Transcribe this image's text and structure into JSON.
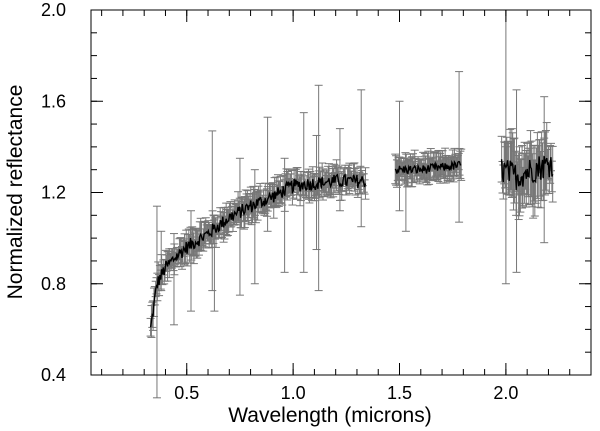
{
  "chart_data": {
    "type": "scatter",
    "title": "",
    "xlabel": "Wavelength (microns)",
    "ylabel": "Normalized reflectance",
    "xlim": [
      0.05,
      2.4
    ],
    "ylim": [
      0.4,
      2.0
    ],
    "x_ticks": [
      {
        "value": 0.5,
        "label": "0.5"
      },
      {
        "value": 1.0,
        "label": "1.0"
      },
      {
        "value": 1.5,
        "label": "1.5"
      },
      {
        "value": 2.0,
        "label": "2.0"
      }
    ],
    "y_ticks": [
      {
        "value": 0.4,
        "label": "0.4"
      },
      {
        "value": 0.8,
        "label": "0.8"
      },
      {
        "value": 1.2,
        "label": "1.2"
      },
      {
        "value": 1.6,
        "label": "1.6"
      },
      {
        "value": 2.0,
        "label": "2.0"
      }
    ],
    "x_minor_step": 0.1,
    "y_minor_step": 0.1,
    "grid": false,
    "colors": {
      "errorbar": "#777777",
      "data": "#000000",
      "axis": "#000000"
    },
    "segments": [
      {
        "name": "visible-1",
        "x_range": [
          0.33,
          1.34
        ],
        "anchors": [
          [
            0.33,
            0.6
          ],
          [
            0.36,
            0.8
          ],
          [
            0.4,
            0.87
          ],
          [
            0.45,
            0.92
          ],
          [
            0.5,
            0.96
          ],
          [
            0.6,
            1.02
          ],
          [
            0.7,
            1.09
          ],
          [
            0.8,
            1.14
          ],
          [
            0.9,
            1.18
          ],
          [
            1.0,
            1.23
          ],
          [
            1.1,
            1.24
          ],
          [
            1.2,
            1.25
          ],
          [
            1.34,
            1.25
          ]
        ],
        "noise": 0.03,
        "error": 0.05
      },
      {
        "name": "nir-h-band",
        "x_range": [
          1.48,
          1.79
        ],
        "anchors": [
          [
            1.48,
            1.3
          ],
          [
            1.6,
            1.3
          ],
          [
            1.7,
            1.31
          ],
          [
            1.79,
            1.32
          ]
        ],
        "noise": 0.02,
        "error": 0.05
      },
      {
        "name": "nir-k-band",
        "x_range": [
          1.98,
          2.22
        ],
        "anchors": [
          [
            1.98,
            1.3
          ],
          [
            2.05,
            1.27
          ],
          [
            2.12,
            1.3
          ],
          [
            2.22,
            1.33
          ]
        ],
        "noise": 0.06,
        "error": 0.12
      }
    ],
    "outlier_errorbars": [
      [
        0.36,
        0.72,
        0.42
      ],
      [
        0.38,
        0.9,
        0.13
      ],
      [
        0.44,
        0.82,
        0.2
      ],
      [
        0.52,
        0.9,
        0.22
      ],
      [
        0.62,
        1.12,
        0.35
      ],
      [
        0.63,
        0.88,
        0.2
      ],
      [
        0.75,
        1.05,
        0.3
      ],
      [
        0.82,
        1.05,
        0.25
      ],
      [
        0.88,
        1.28,
        0.25
      ],
      [
        0.96,
        1.1,
        0.25
      ],
      [
        1.05,
        1.2,
        0.35
      ],
      [
        1.11,
        1.2,
        0.25
      ],
      [
        1.12,
        1.22,
        0.45
      ],
      [
        1.22,
        1.3,
        0.18
      ],
      [
        1.32,
        1.35,
        0.3
      ],
      [
        1.5,
        1.36,
        0.24
      ],
      [
        1.53,
        1.15,
        0.12
      ],
      [
        1.78,
        1.4,
        0.33
      ],
      [
        2.0,
        1.4,
        0.6
      ],
      [
        2.05,
        1.25,
        0.4
      ],
      [
        2.18,
        1.3,
        0.32
      ]
    ]
  }
}
